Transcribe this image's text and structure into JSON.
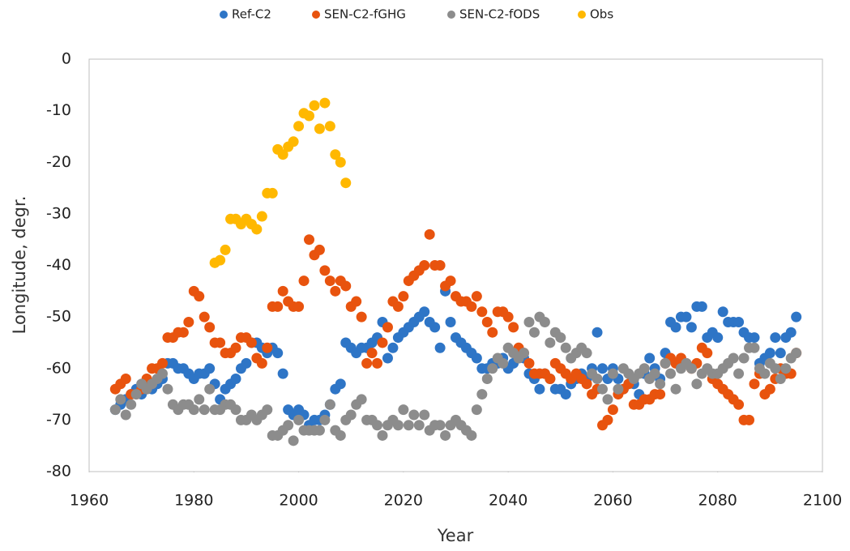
{
  "chart_data": {
    "type": "scatter",
    "xlabel": "Year",
    "ylabel": "Longitude, degr.",
    "xlim": [
      1960,
      2100
    ],
    "xticks": [
      1960,
      1980,
      2000,
      2020,
      2040,
      2060,
      2080,
      2100
    ],
    "ylim": [
      -80,
      0
    ],
    "yticks": [
      0,
      -10,
      -20,
      -30,
      -40,
      -50,
      -60,
      -70,
      -80
    ],
    "legend": "top",
    "grid": false,
    "series": [
      {
        "name": "Ref-C2",
        "color": "#2e75c6",
        "x": [
          1965,
          1966,
          1967,
          1968,
          1969,
          1970,
          1971,
          1972,
          1973,
          1974,
          1975,
          1976,
          1977,
          1978,
          1979,
          1980,
          1981,
          1982,
          1983,
          1984,
          1985,
          1986,
          1987,
          1988,
          1989,
          1990,
          1991,
          1992,
          1993,
          1994,
          1995,
          1996,
          1997,
          1998,
          1999,
          2000,
          2001,
          2002,
          2003,
          2004,
          2005,
          2006,
          2007,
          2008,
          2009,
          2010,
          2011,
          2012,
          2013,
          2014,
          2015,
          2016,
          2017,
          2018,
          2019,
          2020,
          2021,
          2022,
          2023,
          2024,
          2025,
          2026,
          2027,
          2028,
          2029,
          2030,
          2031,
          2032,
          2033,
          2034,
          2035,
          2036,
          2037,
          2038,
          2039,
          2040,
          2041,
          2042,
          2043,
          2044,
          2045,
          2046,
          2047,
          2048,
          2049,
          2050,
          2051,
          2052,
          2053,
          2054,
          2055,
          2056,
          2057,
          2058,
          2059,
          2060,
          2061,
          2062,
          2063,
          2064,
          2065,
          2066,
          2067,
          2068,
          2069,
          2070,
          2071,
          2072,
          2073,
          2074,
          2075,
          2076,
          2077,
          2078,
          2079,
          2080,
          2081,
          2082,
          2083,
          2084,
          2085,
          2086,
          2087,
          2088,
          2089,
          2090,
          2091,
          2092,
          2093,
          2094,
          2095
        ],
        "values": [
          -68,
          -67,
          -66,
          -65,
          -64,
          -65,
          -64,
          -64,
          -63,
          -62,
          -59,
          -59,
          -60,
          -60,
          -61,
          -62,
          -61,
          -61,
          -60,
          -63,
          -66,
          -64,
          -63,
          -62,
          -60,
          -59,
          -55,
          -55,
          -56,
          -57,
          -56,
          -57,
          -61,
          -68,
          -69,
          -68,
          -69,
          -71,
          -70,
          -70,
          -69,
          -67,
          -64,
          -63,
          -55,
          -56,
          -57,
          -56,
          -56,
          -55,
          -54,
          -51,
          -58,
          -56,
          -54,
          -53,
          -52,
          -51,
          -50,
          -49,
          -51,
          -52,
          -56,
          -45,
          -51,
          -54,
          -55,
          -56,
          -57,
          -58,
          -60,
          -60,
          -59,
          -59,
          -58,
          -60,
          -59,
          -58,
          -58,
          -61,
          -62,
          -64,
          -61,
          -62,
          -64,
          -64,
          -65,
          -63,
          -62,
          -61,
          -62,
          -60,
          -53,
          -60,
          -62,
          -60,
          -62,
          -64,
          -63,
          -63,
          -65,
          -61,
          -58,
          -60,
          -62,
          -57,
          -51,
          -52,
          -50,
          -50,
          -52,
          -48,
          -48,
          -54,
          -53,
          -54,
          -49,
          -51,
          -51,
          -51,
          -53,
          -54,
          -54,
          -59,
          -58,
          -57,
          -54,
          -57,
          -54,
          -53,
          -50
        ]
      },
      {
        "name": "SEN-C2-fGHG",
        "color": "#e8530e",
        "x": [
          1965,
          1966,
          1967,
          1968,
          1969,
          1970,
          1971,
          1972,
          1973,
          1974,
          1975,
          1976,
          1977,
          1978,
          1979,
          1980,
          1981,
          1982,
          1983,
          1984,
          1985,
          1986,
          1987,
          1988,
          1989,
          1990,
          1991,
          1992,
          1993,
          1994,
          1995,
          1996,
          1997,
          1998,
          1999,
          2000,
          2001,
          2002,
          2003,
          2004,
          2005,
          2006,
          2007,
          2008,
          2009,
          2010,
          2011,
          2012,
          2013,
          2014,
          2015,
          2016,
          2017,
          2018,
          2019,
          2020,
          2021,
          2022,
          2023,
          2024,
          2025,
          2026,
          2027,
          2028,
          2029,
          2030,
          2031,
          2032,
          2033,
          2034,
          2035,
          2036,
          2037,
          2038,
          2039,
          2040,
          2041,
          2042,
          2043,
          2044,
          2045,
          2046,
          2047,
          2048,
          2049,
          2050,
          2051,
          2052,
          2053,
          2054,
          2055,
          2056,
          2057,
          2058,
          2059,
          2060,
          2061,
          2062,
          2063,
          2064,
          2065,
          2066,
          2067,
          2068,
          2069,
          2070,
          2071,
          2072,
          2073,
          2074,
          2075,
          2076,
          2077,
          2078,
          2079,
          2080,
          2081,
          2082,
          2083,
          2084,
          2085,
          2086,
          2087,
          2088,
          2089,
          2090,
          2091,
          2092,
          2093,
          2094,
          2095
        ],
        "values": [
          -64,
          -63,
          -62,
          -65,
          -65,
          -64,
          -62,
          -60,
          -60,
          -59,
          -54,
          -54,
          -53,
          -53,
          -51,
          -45,
          -46,
          -50,
          -52,
          -55,
          -55,
          -57,
          -57,
          -56,
          -54,
          -54,
          -55,
          -58,
          -59,
          -56,
          -48,
          -48,
          -45,
          -47,
          -48,
          -48,
          -43,
          -35,
          -38,
          -37,
          -41,
          -43,
          -45,
          -43,
          -44,
          -48,
          -47,
          -50,
          -59,
          -57,
          -59,
          -55,
          -52,
          -47,
          -48,
          -46,
          -43,
          -42,
          -41,
          -40,
          -34,
          -40,
          -40,
          -44,
          -43,
          -46,
          -47,
          -47,
          -48,
          -46,
          -49,
          -51,
          -53,
          -49,
          -49,
          -50,
          -52,
          -56,
          -57,
          -59,
          -61,
          -61,
          -61,
          -62,
          -59,
          -60,
          -61,
          -62,
          -61,
          -62,
          -63,
          -65,
          -64,
          -71,
          -70,
          -68,
          -65,
          -64,
          -63,
          -67,
          -67,
          -66,
          -66,
          -65,
          -65,
          -59,
          -58,
          -59,
          -58,
          -59,
          -60,
          -59,
          -56,
          -57,
          -62,
          -63,
          -64,
          -65,
          -66,
          -67,
          -70,
          -70,
          -63,
          -61,
          -65,
          -64,
          -62,
          -60,
          -61,
          -61,
          -57
        ]
      },
      {
        "name": "SEN-C2-fODS",
        "color": "#8c8c8c",
        "x": [
          1965,
          1966,
          1967,
          1968,
          1969,
          1970,
          1971,
          1972,
          1973,
          1974,
          1975,
          1976,
          1977,
          1978,
          1979,
          1980,
          1981,
          1982,
          1983,
          1984,
          1985,
          1986,
          1987,
          1988,
          1989,
          1990,
          1991,
          1992,
          1993,
          1994,
          1995,
          1996,
          1997,
          1998,
          1999,
          2000,
          2001,
          2002,
          2003,
          2004,
          2005,
          2006,
          2007,
          2008,
          2009,
          2010,
          2011,
          2012,
          2013,
          2014,
          2015,
          2016,
          2017,
          2018,
          2019,
          2020,
          2021,
          2022,
          2023,
          2024,
          2025,
          2026,
          2027,
          2028,
          2029,
          2030,
          2031,
          2032,
          2033,
          2034,
          2035,
          2036,
          2037,
          2038,
          2039,
          2040,
          2041,
          2042,
          2043,
          2044,
          2045,
          2046,
          2047,
          2048,
          2049,
          2050,
          2051,
          2052,
          2053,
          2054,
          2055,
          2056,
          2057,
          2058,
          2059,
          2060,
          2061,
          2062,
          2063,
          2064,
          2065,
          2066,
          2067,
          2068,
          2069,
          2070,
          2071,
          2072,
          2073,
          2074,
          2075,
          2076,
          2077,
          2078,
          2079,
          2080,
          2081,
          2082,
          2083,
          2084,
          2085,
          2086,
          2087,
          2088,
          2089,
          2090,
          2091,
          2092,
          2093,
          2094,
          2095
        ],
        "values": [
          -68,
          -66,
          -69,
          -67,
          -65,
          -63,
          -64,
          -63,
          -62,
          -61,
          -64,
          -67,
          -68,
          -67,
          -67,
          -68,
          -66,
          -68,
          -64,
          -68,
          -68,
          -67,
          -67,
          -68,
          -70,
          -70,
          -69,
          -70,
          -69,
          -68,
          -73,
          -73,
          -72,
          -71,
          -74,
          -70,
          -72,
          -72,
          -72,
          -72,
          -70,
          -67,
          -72,
          -73,
          -70,
          -69,
          -67,
          -66,
          -70,
          -70,
          -71,
          -73,
          -71,
          -70,
          -71,
          -68,
          -71,
          -69,
          -71,
          -69,
          -72,
          -71,
          -71,
          -73,
          -71,
          -70,
          -71,
          -72,
          -73,
          -68,
          -65,
          -62,
          -60,
          -58,
          -59,
          -56,
          -57,
          -58,
          -57,
          -51,
          -53,
          -50,
          -51,
          -55,
          -53,
          -54,
          -56,
          -58,
          -57,
          -56,
          -57,
          -61,
          -62,
          -64,
          -66,
          -61,
          -64,
          -60,
          -61,
          -62,
          -61,
          -60,
          -62,
          -61,
          -63,
          -59,
          -61,
          -64,
          -60,
          -59,
          -60,
          -63,
          -61,
          -60,
          -61,
          -61,
          -60,
          -59,
          -58,
          -61,
          -58,
          -56,
          -56,
          -60,
          -61,
          -59,
          -60,
          -62,
          -60,
          -58,
          -57
        ]
      },
      {
        "name": "Obs",
        "color": "#ffb800",
        "x": [
          1984,
          1985,
          1986,
          1987,
          1988,
          1989,
          1990,
          1991,
          1992,
          1993,
          1994,
          1995,
          1996,
          1997,
          1998,
          1999,
          2000,
          2001,
          2002,
          2003,
          2004,
          2005,
          2006,
          2007,
          2008,
          2009
        ],
        "values": [
          -39.5,
          -39,
          -37,
          -31,
          -31,
          -32,
          -31,
          -32,
          -33,
          -30.5,
          -26,
          -26,
          -17.5,
          -18.5,
          -17,
          -16,
          -13,
          -10.5,
          -11,
          -9,
          -13.5,
          -8.5,
          -13,
          -18.5,
          -20,
          -24
        ]
      }
    ]
  }
}
